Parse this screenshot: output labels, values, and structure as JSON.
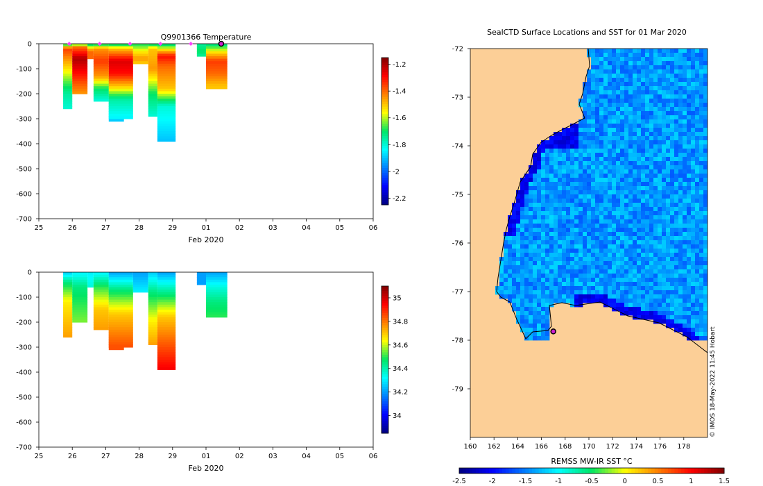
{
  "chart_data": [
    {
      "type": "heatmap",
      "variable": "temperature",
      "title": "Q9901366  Temperature",
      "xlabel": "Feb 2020",
      "x_ticks": [
        "25",
        "26",
        "27",
        "28",
        "29",
        "01",
        "02",
        "03",
        "04",
        "05",
        "06"
      ],
      "y_ticks": [
        "0",
        "-100",
        "-200",
        "-300",
        "-400",
        "-500",
        "-600",
        "-700"
      ],
      "ylim": [
        -700,
        0
      ],
      "colorbar": {
        "min": -2.25,
        "max": -1.15,
        "ticks": [
          "-1.2",
          "-1.4",
          "-1.6",
          "-1.8",
          "-2",
          "-2.2"
        ],
        "tick_values": [
          -1.2,
          -1.4,
          -1.6,
          -1.8,
          -2,
          -2.2
        ],
        "colormap": "jet"
      },
      "profile_markers_day": [
        26,
        27,
        28,
        29,
        30
      ],
      "current_marker_day": 31,
      "profiles": [
        {
          "start": 25.8,
          "end": 26.1,
          "depth": 260,
          "layers": [
            [
              0,
              -1.75
            ],
            [
              20,
              -1.35
            ],
            [
              150,
              -1.65
            ],
            [
              200,
              -1.75
            ],
            [
              260,
              -1.8
            ]
          ]
        },
        {
          "start": 26.1,
          "end": 26.6,
          "depth": 200,
          "layers": [
            [
              0,
              -1.7
            ],
            [
              15,
              -1.4
            ],
            [
              60,
              -1.2
            ],
            [
              120,
              -1.3
            ],
            [
              170,
              -1.4
            ],
            [
              200,
              -1.45
            ]
          ]
        },
        {
          "start": 26.6,
          "end": 26.8,
          "depth": 55,
          "layers": [
            [
              0,
              -1.75
            ],
            [
              30,
              -1.4
            ],
            [
              55,
              -1.4
            ]
          ]
        },
        {
          "start": 26.8,
          "end": 27.3,
          "depth": 225,
          "layers": [
            [
              0,
              -1.75
            ],
            [
              20,
              -1.45
            ],
            [
              70,
              -1.35
            ],
            [
              130,
              -1.45
            ],
            [
              180,
              -1.7
            ],
            [
              225,
              -1.8
            ]
          ]
        },
        {
          "start": 27.3,
          "end": 27.8,
          "depth": 310,
          "layers": [
            [
              0,
              -1.75
            ],
            [
              20,
              -1.45
            ],
            [
              80,
              -1.5
            ],
            [
              180,
              -1.7
            ],
            [
              240,
              -1.8
            ],
            [
              310,
              -1.9
            ]
          ]
        },
        {
          "start": 27.3,
          "end": 28.1,
          "depth": 300,
          "layers": [
            [
              0,
              -1.75
            ],
            [
              20,
              -1.5
            ],
            [
              70,
              -1.25
            ],
            [
              120,
              -1.3
            ],
            [
              170,
              -1.5
            ],
            [
              220,
              -1.75
            ],
            [
              300,
              -1.85
            ]
          ]
        },
        {
          "start": 28.1,
          "end": 28.6,
          "depth": 75,
          "layers": [
            [
              0,
              -1.7
            ],
            [
              30,
              -1.55
            ],
            [
              60,
              -1.45
            ],
            [
              75,
              -1.5
            ]
          ]
        },
        {
          "start": 28.6,
          "end": 28.9,
          "depth": 290,
          "layers": [
            [
              0,
              -1.75
            ],
            [
              20,
              -1.5
            ],
            [
              100,
              -1.45
            ],
            [
              200,
              -1.7
            ],
            [
              290,
              -1.8
            ]
          ]
        },
        {
          "start": 28.9,
          "end": 29.5,
          "depth": 385,
          "layers": [
            [
              0,
              -1.75
            ],
            [
              50,
              -1.3
            ],
            [
              90,
              -1.4
            ],
            [
              180,
              -1.5
            ],
            [
              250,
              -1.8
            ],
            [
              385,
              -1.9
            ]
          ]
        },
        {
          "start": 30.2,
          "end": 30.5,
          "depth": 50,
          "layers": [
            [
              0,
              -1.75
            ],
            [
              30,
              -1.7
            ],
            [
              50,
              -1.75
            ]
          ]
        },
        {
          "start": 30.5,
          "end": 31.2,
          "depth": 180,
          "layers": [
            [
              0,
              -1.75
            ],
            [
              40,
              -1.5
            ],
            [
              70,
              -1.35
            ],
            [
              120,
              -1.4
            ],
            [
              170,
              -1.5
            ],
            [
              180,
              -1.5
            ]
          ]
        }
      ]
    },
    {
      "type": "heatmap",
      "variable": "salinity",
      "title": "",
      "xlabel": "Feb 2020",
      "x_ticks": [
        "25",
        "26",
        "27",
        "28",
        "29",
        "01",
        "02",
        "03",
        "04",
        "05",
        "06"
      ],
      "y_ticks": [
        "0",
        "-100",
        "-200",
        "-300",
        "-400",
        "-500",
        "-600",
        "-700"
      ],
      "ylim": [
        -700,
        0
      ],
      "colorbar": {
        "min": 33.85,
        "max": 35.1,
        "ticks": [
          "35",
          "34.8",
          "34.6",
          "34.4",
          "34.2",
          "34"
        ],
        "tick_values": [
          35,
          34.8,
          34.6,
          34.4,
          34.2,
          34
        ],
        "colormap": "jet"
      },
      "profiles": [
        {
          "start": 25.8,
          "end": 26.1,
          "depth": 260,
          "layers": [
            [
              0,
              34.25
            ],
            [
              40,
              34.45
            ],
            [
              120,
              34.65
            ],
            [
              260,
              34.75
            ]
          ]
        },
        {
          "start": 26.1,
          "end": 26.6,
          "depth": 200,
          "layers": [
            [
              0,
              34.3
            ],
            [
              60,
              34.45
            ],
            [
              200,
              34.55
            ]
          ]
        },
        {
          "start": 26.6,
          "end": 26.8,
          "depth": 55,
          "layers": [
            [
              0,
              34.3
            ],
            [
              55,
              34.35
            ]
          ]
        },
        {
          "start": 26.8,
          "end": 27.3,
          "depth": 225,
          "layers": [
            [
              0,
              34.3
            ],
            [
              60,
              34.5
            ],
            [
              150,
              34.7
            ],
            [
              225,
              34.75
            ]
          ]
        },
        {
          "start": 27.3,
          "end": 27.8,
          "depth": 310,
          "layers": [
            [
              0,
              34.25
            ],
            [
              80,
              34.5
            ],
            [
              200,
              34.75
            ],
            [
              310,
              34.85
            ]
          ]
        },
        {
          "start": 27.3,
          "end": 28.1,
          "depth": 300,
          "layers": [
            [
              0,
              34.2
            ],
            [
              70,
              34.45
            ],
            [
              170,
              34.7
            ],
            [
              300,
              34.85
            ]
          ]
        },
        {
          "start": 28.1,
          "end": 28.6,
          "depth": 75,
          "layers": [
            [
              0,
              34.2
            ],
            [
              75,
              34.3
            ]
          ]
        },
        {
          "start": 28.6,
          "end": 28.9,
          "depth": 290,
          "layers": [
            [
              0,
              34.25
            ],
            [
              80,
              34.45
            ],
            [
              200,
              34.65
            ],
            [
              290,
              34.75
            ]
          ]
        },
        {
          "start": 28.9,
          "end": 29.5,
          "depth": 385,
          "layers": [
            [
              0,
              34.2
            ],
            [
              50,
              34.35
            ],
            [
              180,
              34.7
            ],
            [
              300,
              34.85
            ],
            [
              385,
              34.95
            ]
          ]
        },
        {
          "start": 30.2,
          "end": 30.5,
          "depth": 50,
          "layers": [
            [
              0,
              34.2
            ],
            [
              50,
              34.2
            ]
          ]
        },
        {
          "start": 30.5,
          "end": 31.2,
          "depth": 180,
          "layers": [
            [
              0,
              34.2
            ],
            [
              60,
              34.35
            ],
            [
              120,
              34.45
            ],
            [
              180,
              34.5
            ]
          ]
        }
      ]
    },
    {
      "type": "heatmap",
      "variable": "sst_map",
      "title": "SealCTD Surface Locations and SST for 01 Mar 2020",
      "x_ticks": [
        "160",
        "162",
        "164",
        "166",
        "168",
        "170",
        "172",
        "174",
        "176",
        "178"
      ],
      "x_values": [
        160,
        162,
        164,
        166,
        168,
        170,
        172,
        174,
        176,
        178
      ],
      "y_ticks": [
        "-72",
        "-73",
        "-74",
        "-75",
        "-76",
        "-77",
        "-78",
        "-79"
      ],
      "y_values": [
        -72,
        -73,
        -74,
        -75,
        -76,
        -77,
        -78,
        -79
      ],
      "xlim": [
        160,
        180
      ],
      "ylim": [
        -80,
        -72
      ],
      "colorbar": {
        "label": "REMSS MW-IR SST °C",
        "min": -2.5,
        "max": 1.5,
        "ticks": [
          "-2.5",
          "-2",
          "-1.5",
          "-1",
          "-0.5",
          "0",
          "0.5",
          "1",
          "1.5"
        ],
        "tick_values": [
          -2.5,
          -2,
          -1.5,
          -1,
          -0.5,
          0,
          0.5,
          1,
          1.5
        ],
        "colormap": "jet"
      },
      "typical_sst": -1.4,
      "cold_sst": -2.2,
      "current_location": {
        "lon": 167.0,
        "lat": -77.82
      },
      "land_color": "#fccf97",
      "credit": "© IMOS 18-May-2022 11:45 Hobart"
    }
  ]
}
